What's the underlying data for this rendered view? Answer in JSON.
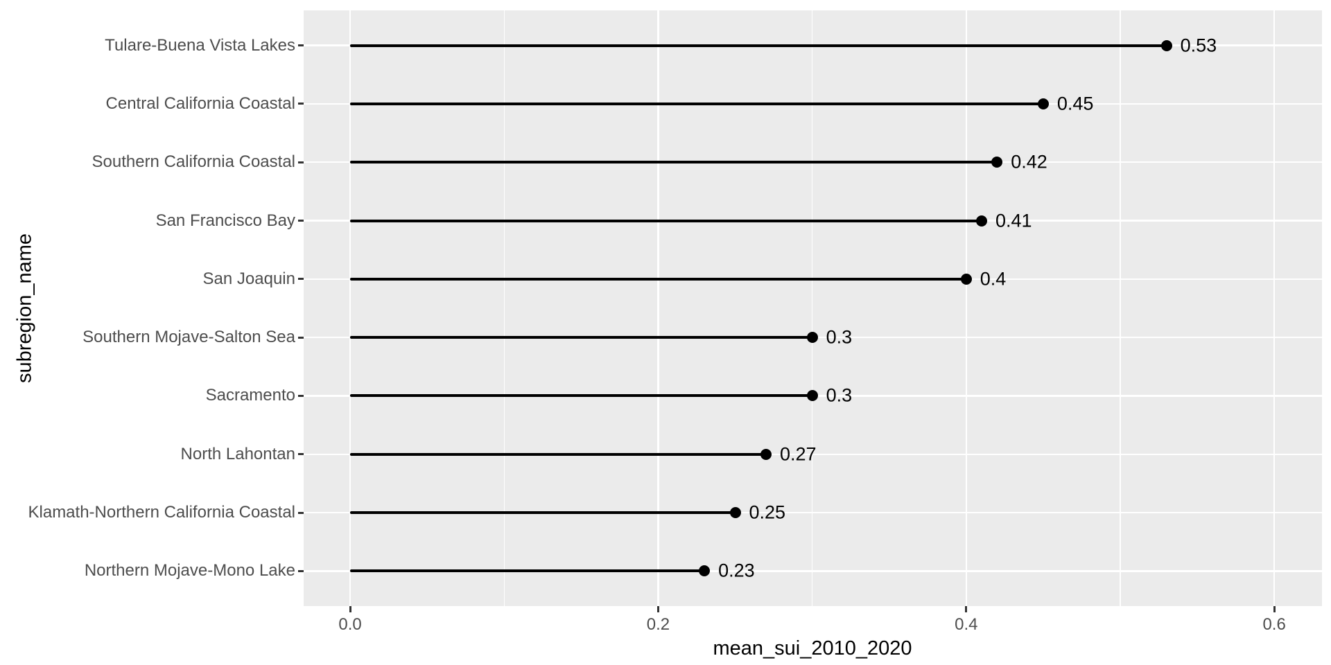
{
  "chart_data": {
    "type": "bar",
    "variant": "lollipop",
    "orientation": "horizontal",
    "title": "",
    "xlabel": "mean_sui_2010_2020",
    "ylabel": "subregion_name",
    "categories": [
      "Tulare-Buena Vista Lakes",
      "Central California Coastal",
      "Southern California Coastal",
      "San Francisco Bay",
      "San Joaquin",
      "Southern Mojave-Salton Sea",
      "Sacramento",
      "North Lahontan",
      "Klamath-Northern California Coastal",
      "Northern Mojave-Mono Lake"
    ],
    "values": [
      0.53,
      0.45,
      0.42,
      0.41,
      0.4,
      0.3,
      0.3,
      0.27,
      0.25,
      0.23
    ],
    "value_labels": [
      "0.53",
      "0.45",
      "0.42",
      "0.41",
      "0.4",
      "0.3",
      "0.3",
      "0.27",
      "0.25",
      "0.23"
    ],
    "xlim": [
      -0.0302,
      0.631
    ],
    "x_ticks": {
      "values": [
        0.0,
        0.2,
        0.4,
        0.6
      ],
      "labels": [
        "0.0",
        "0.2",
        "0.4",
        "0.6"
      ]
    },
    "x_minor_ticks": [
      0.1,
      0.3,
      0.5
    ],
    "grid": "major-horizontal-per-category, major-and-minor-vertical",
    "legend": "none",
    "colors": {
      "page_bg": "#FFFFFF",
      "panel_bg": "#EBEBEB",
      "grid": "#FFFFFF",
      "axis_text": "#4D4D4D",
      "axis_title": "#000000",
      "tick_mark": "#333333",
      "series": "#000000"
    }
  }
}
